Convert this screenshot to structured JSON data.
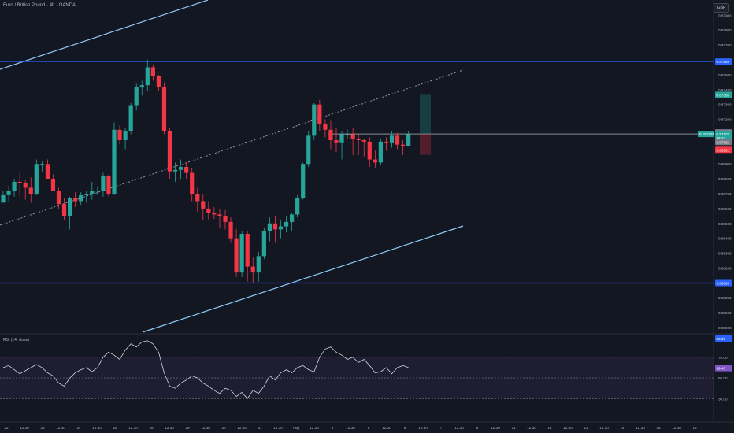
{
  "header": {
    "title": "Euro / British Pound · 4h · OANDA",
    "currency": "GBP"
  },
  "colors": {
    "background": "#131722",
    "bull": "#26a69a",
    "bear": "#f23645",
    "level_line": "#2962ff",
    "channel_line": "#90caf9",
    "price_line": "#d1d4dc",
    "rsi_line": "#d1d4dc",
    "rsi_band": "#7e57c2"
  },
  "price_axis": {
    "labels": [
      "0.87900",
      "0.87800",
      "0.87700",
      "0.87600",
      "0.87500",
      "0.87400",
      "0.87300",
      "0.87200",
      "0.87100",
      "0.87000",
      "0.86900",
      "0.86800",
      "0.86700",
      "0.86600",
      "0.86500",
      "0.86400",
      "0.86300",
      "0.86200",
      "0.86100",
      "0.86000",
      "0.85900",
      "0.85800"
    ],
    "tags": [
      {
        "text": "0.87589",
        "color": "#2962ff",
        "value": 0.87589
      },
      {
        "text": "0.87365",
        "color": "#26a69a",
        "value": 0.87365
      },
      {
        "text": "0.87112",
        "color": "#787b86",
        "value": 0.87112
      },
      {
        "text": "0.87102",
        "color": "#26a69a",
        "value": 0.87102
      },
      {
        "text": "38:27",
        "color": "#26a69a",
        "value": 0.87075
      },
      {
        "text": "0.87082",
        "color": "#787b86",
        "value": 0.87048
      },
      {
        "text": "0.86961",
        "color": "#f23645",
        "value": 0.86995
      },
      {
        "text": "0.86099",
        "color": "#2962ff",
        "value": 0.86099
      }
    ],
    "symbol_tag": "EURGBP"
  },
  "rsi": {
    "label": "RSI (14, close)",
    "axis_labels": [
      "70.00",
      "50.00",
      "30.00"
    ],
    "tags": [
      {
        "text": "83.95",
        "color": "#2962ff",
        "value": 83.95
      },
      {
        "text": "59.45",
        "color": "#7e57c2",
        "value": 59.45
      }
    ],
    "values": [
      60,
      62,
      58,
      54,
      57,
      60,
      63,
      60,
      55,
      52,
      45,
      42,
      50,
      55,
      58,
      60,
      56,
      60,
      70,
      75,
      72,
      68,
      77,
      83,
      80,
      85,
      86,
      83,
      75,
      55,
      42,
      40,
      45,
      48,
      52,
      50,
      45,
      42,
      38,
      35,
      40,
      38,
      32,
      36,
      30,
      38,
      35,
      42,
      52,
      48,
      55,
      58,
      55,
      60,
      62,
      58,
      56,
      70,
      78,
      80,
      75,
      72,
      68,
      70,
      65,
      68,
      62,
      55,
      56,
      60,
      54,
      60,
      62,
      60
    ]
  },
  "time_axis": {
    "labels": [
      "22",
      "12:30",
      "23",
      "12:30",
      "24",
      "12:30",
      "25",
      "12:30",
      "28",
      "12:30",
      "29",
      "12:30",
      "30",
      "12:30",
      "31",
      "12:30",
      "Aug",
      "12:30",
      "4",
      "12:30",
      "5",
      "12:30",
      "6",
      "12:30",
      "7",
      "12:30",
      "8",
      "12:30",
      "11",
      "12:30",
      "12",
      "12:30",
      "13",
      "12:30",
      "14",
      "12:30",
      "15",
      "12:30",
      "18"
    ]
  },
  "chart_data": {
    "type": "candlestick",
    "title": "Euro / British Pound · 4h · OANDA",
    "ylim": [
      0.858,
      0.8796
    ],
    "horizontal_levels": [
      0.87589,
      0.86099
    ],
    "current_price": 0.87102,
    "candles": [
      [
        0.8664,
        0.8669,
        0.8665,
        0.8672
      ],
      [
        0.8669,
        0.8672,
        0.8665,
        0.8675
      ],
      [
        0.8672,
        0.8678,
        0.8668,
        0.868
      ],
      [
        0.8678,
        0.8677,
        0.8668,
        0.8684
      ],
      [
        0.8677,
        0.8674,
        0.8666,
        0.8679
      ],
      [
        0.8674,
        0.867,
        0.8664,
        0.8681
      ],
      [
        0.867,
        0.869,
        0.8669,
        0.8693
      ],
      [
        0.869,
        0.869,
        0.8685,
        0.8692
      ],
      [
        0.869,
        0.868,
        0.868,
        0.8693
      ],
      [
        0.868,
        0.8672,
        0.8672,
        0.8683
      ],
      [
        0.8672,
        0.8663,
        0.866,
        0.8674
      ],
      [
        0.8663,
        0.8655,
        0.8652,
        0.8667
      ],
      [
        0.8655,
        0.8667,
        0.8646,
        0.8668
      ],
      [
        0.8667,
        0.8665,
        0.8661,
        0.8671
      ],
      [
        0.8665,
        0.8669,
        0.8662,
        0.8671
      ],
      [
        0.8669,
        0.867,
        0.8664,
        0.8672
      ],
      [
        0.867,
        0.8672,
        0.8666,
        0.8678
      ],
      [
        0.8672,
        0.8672,
        0.8669,
        0.8675
      ],
      [
        0.8672,
        0.8682,
        0.8668,
        0.8684
      ],
      [
        0.8682,
        0.867,
        0.8668,
        0.8683
      ],
      [
        0.867,
        0.8713,
        0.8669,
        0.8718
      ],
      [
        0.8713,
        0.8706,
        0.8703,
        0.8716
      ],
      [
        0.8706,
        0.8712,
        0.87,
        0.8714
      ],
      [
        0.8712,
        0.8729,
        0.871,
        0.8731
      ],
      [
        0.8729,
        0.8742,
        0.8726,
        0.8744
      ],
      [
        0.8742,
        0.8743,
        0.8736,
        0.8746
      ],
      [
        0.8743,
        0.8755,
        0.8739,
        0.876
      ],
      [
        0.8755,
        0.8749,
        0.8746,
        0.8757
      ],
      [
        0.8749,
        0.8742,
        0.8739,
        0.875
      ],
      [
        0.8742,
        0.8712,
        0.871,
        0.8745
      ],
      [
        0.8712,
        0.8685,
        0.868,
        0.8714
      ],
      [
        0.8685,
        0.8686,
        0.8678,
        0.8691
      ],
      [
        0.8686,
        0.8688,
        0.868,
        0.8693
      ],
      [
        0.8688,
        0.8684,
        0.868,
        0.8691
      ],
      [
        0.8684,
        0.867,
        0.8665,
        0.8687
      ],
      [
        0.867,
        0.8665,
        0.8658,
        0.8674
      ],
      [
        0.8665,
        0.866,
        0.8652,
        0.867
      ],
      [
        0.866,
        0.8657,
        0.8652,
        0.8665
      ],
      [
        0.8657,
        0.8656,
        0.8653,
        0.8661
      ],
      [
        0.8656,
        0.8655,
        0.8647,
        0.866
      ],
      [
        0.8655,
        0.8651,
        0.8646,
        0.8659
      ],
      [
        0.8651,
        0.864,
        0.8637,
        0.8654
      ],
      [
        0.864,
        0.8617,
        0.8614,
        0.8646
      ],
      [
        0.8617,
        0.8643,
        0.8614,
        0.8645
      ],
      [
        0.8643,
        0.8621,
        0.8611,
        0.8645
      ],
      [
        0.8621,
        0.8617,
        0.861,
        0.8627
      ],
      [
        0.8617,
        0.8628,
        0.8611,
        0.8631
      ],
      [
        0.8628,
        0.8645,
        0.8626,
        0.8647
      ],
      [
        0.8645,
        0.865,
        0.8638,
        0.8654
      ],
      [
        0.865,
        0.8646,
        0.8637,
        0.8655
      ],
      [
        0.8646,
        0.8648,
        0.864,
        0.8652
      ],
      [
        0.8648,
        0.8651,
        0.8644,
        0.8655
      ],
      [
        0.8651,
        0.8656,
        0.8645,
        0.8657
      ],
      [
        0.8656,
        0.8667,
        0.8654,
        0.8669
      ],
      [
        0.8667,
        0.869,
        0.8666,
        0.8691
      ],
      [
        0.869,
        0.8709,
        0.8688,
        0.8712
      ],
      [
        0.8709,
        0.873,
        0.8706,
        0.8731
      ],
      [
        0.873,
        0.8717,
        0.8712,
        0.8733
      ],
      [
        0.8717,
        0.8713,
        0.8708,
        0.872
      ],
      [
        0.8713,
        0.8706,
        0.87,
        0.8719
      ],
      [
        0.8706,
        0.8704,
        0.8698,
        0.8714
      ],
      [
        0.8704,
        0.871,
        0.8693,
        0.8712
      ],
      [
        0.871,
        0.871,
        0.8707,
        0.8713
      ],
      [
        0.871,
        0.8707,
        0.8696,
        0.8714
      ],
      [
        0.8707,
        0.8706,
        0.8696,
        0.871
      ],
      [
        0.8706,
        0.8705,
        0.8695,
        0.8707
      ],
      [
        0.8705,
        0.8693,
        0.8688,
        0.8708
      ],
      [
        0.8693,
        0.8691,
        0.8687,
        0.8699
      ],
      [
        0.8691,
        0.8705,
        0.8689,
        0.8707
      ],
      [
        0.8705,
        0.8704,
        0.8699,
        0.8708
      ],
      [
        0.8704,
        0.8709,
        0.8701,
        0.8712
      ],
      [
        0.8709,
        0.8703,
        0.87,
        0.8711
      ],
      [
        0.8703,
        0.8702,
        0.8696,
        0.8706
      ],
      [
        0.8702,
        0.871,
        0.8702,
        0.8712
      ]
    ]
  }
}
